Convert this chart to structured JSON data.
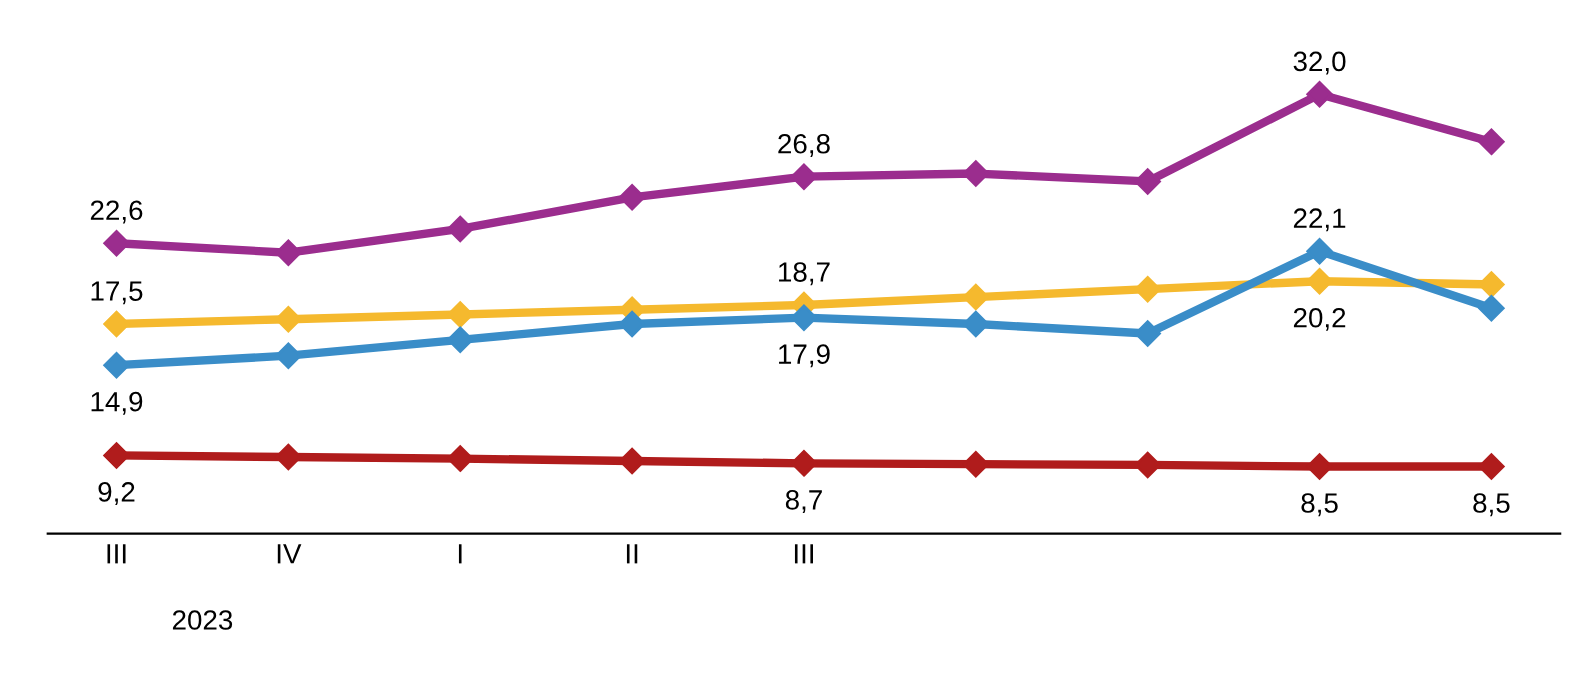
{
  "chart_data": {
    "type": "line",
    "categories": [
      "III",
      "IV",
      "I",
      "II",
      "III",
      null,
      null,
      null,
      null
    ],
    "series": [
      {
        "color": "#9b2d8e",
        "values": [
          22.6,
          22.0,
          23.5,
          25.5,
          26.8,
          27.0,
          26.5,
          32.0,
          29.0
        ],
        "value_labels": [
          "22,6",
          null,
          null,
          null,
          "26,8",
          null,
          null,
          "32,0",
          null
        ]
      },
      {
        "color": "#f5b92e",
        "values": [
          17.5,
          17.8,
          18.1,
          18.4,
          18.7,
          19.2,
          19.7,
          20.2,
          20.0
        ],
        "value_labels": [
          "17,5",
          null,
          null,
          null,
          "18,7",
          null,
          null,
          "20,2",
          null
        ]
      },
      {
        "color": "#3a8dc8",
        "values": [
          14.9,
          15.5,
          16.5,
          17.5,
          17.9,
          17.5,
          16.9,
          22.1,
          18.5
        ],
        "value_labels": [
          "14,9",
          null,
          null,
          null,
          "17,9",
          null,
          null,
          "22,1",
          null
        ]
      },
      {
        "color": "#b01c1c",
        "values": [
          9.2,
          9.1,
          9.0,
          8.85,
          8.7,
          8.65,
          8.6,
          8.5,
          8.5
        ],
        "value_labels": [
          "9,2",
          null,
          null,
          null,
          "8,7",
          null,
          null,
          "8,5",
          "8,5"
        ]
      }
    ],
    "annotations": [
      "2023"
    ],
    "marker": "diamond",
    "line_style": "solid",
    "grid": false
  }
}
